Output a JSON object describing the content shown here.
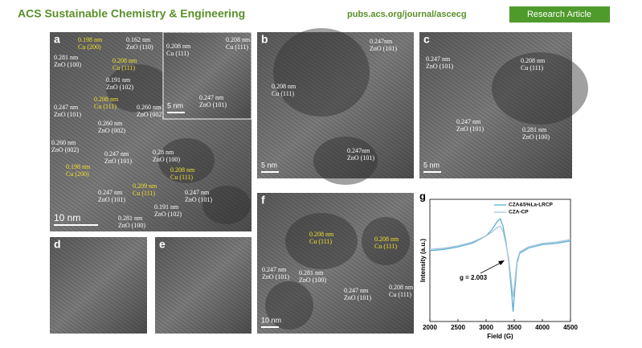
{
  "header": {
    "journal": "ACS Sustainable Chemistry & Engineering",
    "url": "pubs.acs.org/journal/ascecg",
    "badge": "Research Article"
  },
  "panels": [
    {
      "letter": "a",
      "scale_bar": "10 nm",
      "labels": [
        {
          "lines": [
            "0.198 nm",
            "Cu (200)"
          ],
          "color": "#f0e030"
        },
        {
          "lines": [
            "0.162 nm",
            "ZnO (110)"
          ],
          "color": "#ffffff"
        },
        {
          "lines": [
            "0.281 nm",
            "ZnO (100)"
          ],
          "color": "#ffffff"
        },
        {
          "lines": [
            "0.208 nm",
            "Cu (111)"
          ],
          "color": "#f0e030"
        },
        {
          "lines": [
            "0.191 nm",
            "ZnO (102)"
          ],
          "color": "#ffffff"
        },
        {
          "lines": [
            "0.208 nm",
            "Cu (111)"
          ],
          "color": "#f0e030"
        },
        {
          "lines": [
            "0.247 nm",
            "ZnO (101)"
          ],
          "color": "#ffffff"
        },
        {
          "lines": [
            "0.260 nm",
            "ZnO (002)"
          ],
          "color": "#ffffff"
        },
        {
          "lines": [
            "0.260 nm",
            "ZnO (002)"
          ],
          "color": "#ffffff"
        },
        {
          "lines": [
            "0.260 nm",
            "ZnO (002)"
          ],
          "color": "#ffffff"
        },
        {
          "lines": [
            "0.247 nm",
            "ZnO (101)"
          ],
          "color": "#ffffff"
        },
        {
          "lines": [
            "0.28 nm",
            "ZnO (100)"
          ],
          "color": "#ffffff"
        },
        {
          "lines": [
            "0.198 nm",
            "Cu (200)"
          ],
          "color": "#f0e030"
        },
        {
          "lines": [
            "0.208 nm",
            "Cu (111)"
          ],
          "color": "#f0e030"
        },
        {
          "lines": [
            "0.209 nm",
            "Cu (111)"
          ],
          "color": "#f0e030"
        },
        {
          "lines": [
            "0.247 nm",
            "ZnO (101)"
          ],
          "color": "#ffffff"
        },
        {
          "lines": [
            "0.247 nm",
            "ZnO (101)"
          ],
          "color": "#ffffff"
        },
        {
          "lines": [
            "0.191 nm",
            "ZnO (102)"
          ],
          "color": "#ffffff"
        },
        {
          "lines": [
            "0.281 nm",
            "ZnO (100)"
          ],
          "color": "#ffffff"
        }
      ]
    },
    {
      "scale_bar": "5 nm",
      "labels": [
        {
          "lines": [
            "0.208 nm",
            "Cu (111)"
          ],
          "color": "#ffffff"
        },
        {
          "lines": [
            "0.208 nm",
            "Cu (111)"
          ],
          "color": "#ffffff"
        },
        {
          "lines": [
            "0.247 nm",
            "ZnO (101)"
          ],
          "color": "#ffffff"
        }
      ]
    },
    {
      "letter": "b",
      "scale_bar": "5 nm",
      "labels": [
        {
          "lines": [
            "0.247nm",
            "ZnO (101)"
          ],
          "color": "#ffffff"
        },
        {
          "lines": [
            "0.208 nm",
            "Cu (111)"
          ],
          "color": "#ffffff"
        },
        {
          "lines": [
            "0.247nm",
            "ZnO (101)"
          ],
          "color": "#ffffff"
        }
      ]
    },
    {
      "letter": "c",
      "scale_bar": "5 nm",
      "labels": [
        {
          "lines": [
            "0.247 nm",
            "ZnO (101)"
          ],
          "color": "#ffffff"
        },
        {
          "lines": [
            "0.208 nm",
            "Cu (111)"
          ],
          "color": "#ffffff"
        },
        {
          "lines": [
            "0.247 nm",
            "ZnO (101)"
          ],
          "color": "#ffffff"
        },
        {
          "lines": [
            "0.281 nm",
            "ZnO (100)"
          ],
          "color": "#ffffff"
        }
      ]
    },
    {
      "letter": "d",
      "labels": []
    },
    {
      "letter": "e",
      "labels": []
    },
    {
      "letter": "f",
      "scale_bar": "10 nm",
      "labels": [
        {
          "lines": [
            "0.208 nm",
            "Cu (111)"
          ],
          "color": "#f0e030"
        },
        {
          "lines": [
            "0.208 nm",
            "Cu (111)"
          ],
          "color": "#f0e030"
        },
        {
          "lines": [
            "0.247 nm",
            "ZnO (101)"
          ],
          "color": "#ffffff"
        },
        {
          "lines": [
            "0.281 nm",
            "ZnO (100)"
          ],
          "color": "#ffffff"
        },
        {
          "lines": [
            "0.247 nm",
            "ZnO (101)"
          ],
          "color": "#ffffff"
        },
        {
          "lines": [
            "0.208 nm",
            "Cu (111)"
          ],
          "color": "#ffffff"
        }
      ]
    }
  ],
  "chart_data": {
    "type": "line",
    "panel_label": "g",
    "xlabel": "Field (G)",
    "ylabel": "Intensity (a.u.)",
    "x": [
      2000,
      2250,
      2500,
      2750,
      3000,
      3100,
      3200,
      3250,
      3300,
      3350,
      3400,
      3450,
      3480,
      3500,
      3550,
      3600,
      3750,
      4000,
      4250,
      4500
    ],
    "series": [
      {
        "name": "CZA&5%La-LRCP",
        "color": "#5aaed6",
        "values": [
          58,
          59,
          61,
          64,
          70,
          75,
          82,
          84,
          78,
          66,
          50,
          25,
          8,
          20,
          48,
          56,
          60,
          63,
          64,
          66
        ]
      },
      {
        "name": "CZA-CP",
        "color": "#a9c7d6",
        "values": [
          59,
          60,
          62,
          65,
          70,
          73,
          77,
          78,
          74,
          64,
          52,
          32,
          20,
          28,
          50,
          57,
          61,
          64,
          65,
          67
        ]
      }
    ],
    "xlim": [
      2000,
      4500
    ],
    "ylim": [
      0,
      100
    ],
    "xticks": [
      2000,
      2500,
      3000,
      3500,
      4000,
      4500
    ],
    "annotation": "g = 2.003",
    "legend": "upper right"
  }
}
